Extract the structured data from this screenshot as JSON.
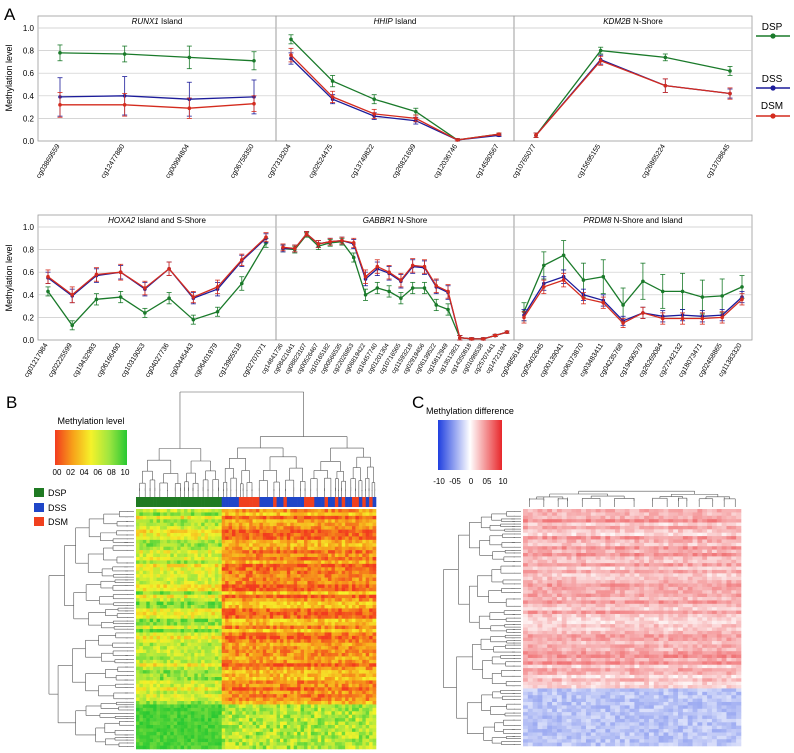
{
  "panel_letters": {
    "a": "A",
    "b": "B",
    "c": "C"
  },
  "shared": {
    "ylabel": "Methylation level",
    "yticks": [
      "0.0",
      "0.2",
      "0.4",
      "0.6",
      "0.8",
      "1.0"
    ]
  },
  "legend": {
    "items": [
      {
        "label": "DSP",
        "color": "#1a7a2a"
      },
      {
        "label": "DSS",
        "color": "#1c1c9a"
      },
      {
        "label": "DSM",
        "color": "#d42b1e"
      }
    ]
  },
  "colors": {
    "dsp": "#1a7a2a",
    "dss": "#1c1c9a",
    "dsm": "#d42b1e",
    "grid": "#c8c8c8",
    "frame": "#9a9a9a"
  },
  "chart_data": [
    {
      "type": "line",
      "gene": "RUNX1",
      "region": " Island",
      "ylim": [
        0,
        1
      ],
      "categories": [
        "cg03869559",
        "cg12477880",
        "cg00994804",
        "cg06758350"
      ],
      "series": [
        {
          "name": "DSP",
          "values": [
            0.78,
            0.77,
            0.74,
            0.71
          ],
          "errors": [
            0.07,
            0.07,
            0.1,
            0.08
          ]
        },
        {
          "name": "DSS",
          "values": [
            0.39,
            0.4,
            0.37,
            0.39
          ],
          "errors": [
            0.17,
            0.17,
            0.15,
            0.15
          ]
        },
        {
          "name": "DSM",
          "values": [
            0.32,
            0.32,
            0.29,
            0.33
          ],
          "errors": [
            0.11,
            0.1,
            0.09,
            0.07
          ]
        }
      ]
    },
    {
      "type": "line",
      "gene": "HHIP",
      "region": " Island",
      "ylim": [
        0,
        1
      ],
      "categories": [
        "cg07318204",
        "cg02524475",
        "cg13749822",
        "cg26821699",
        "cg12036746",
        "cg14580567"
      ],
      "series": [
        {
          "name": "DSP",
          "values": [
            0.9,
            0.53,
            0.37,
            0.26,
            0.01,
            0.06
          ],
          "errors": [
            0.04,
            0.05,
            0.04,
            0.03,
            0.01,
            0.01
          ]
        },
        {
          "name": "DSS",
          "values": [
            0.73,
            0.37,
            0.22,
            0.18,
            0.01,
            0.05
          ],
          "errors": [
            0.05,
            0.04,
            0.03,
            0.03,
            0.01,
            0.01
          ]
        },
        {
          "name": "DSM",
          "values": [
            0.76,
            0.39,
            0.24,
            0.2,
            0.01,
            0.06
          ],
          "errors": [
            0.06,
            0.05,
            0.04,
            0.03,
            0.01,
            0.01
          ]
        }
      ]
    },
    {
      "type": "line",
      "gene": "KDM2B",
      "region": " N-Shore",
      "ylim": [
        0,
        1
      ],
      "categories": [
        "cg10765077",
        "cg15695155",
        "cg26865224",
        "cg13708645"
      ],
      "series": [
        {
          "name": "DSP",
          "values": [
            0.05,
            0.8,
            0.74,
            0.62
          ],
          "errors": [
            0.02,
            0.03,
            0.03,
            0.04
          ]
        },
        {
          "name": "DSS",
          "values": [
            0.05,
            0.72,
            0.49,
            0.42
          ],
          "errors": [
            0.02,
            0.04,
            0.06,
            0.04
          ]
        },
        {
          "name": "DSM",
          "values": [
            0.05,
            0.71,
            0.49,
            0.42
          ],
          "errors": [
            0.02,
            0.04,
            0.06,
            0.05
          ]
        }
      ]
    },
    {
      "type": "line",
      "gene": "HOXA2",
      "region": " Island and S-Shore",
      "ylim": [
        0,
        1
      ],
      "categories": [
        "cg01217984",
        "cg02225599",
        "cg19432993",
        "cg06166490",
        "cg10319053",
        "cg04027736",
        "cg00445443",
        "cg06401979",
        "cg13965518",
        "cg02707071"
      ],
      "series": [
        {
          "name": "DSP",
          "values": [
            0.43,
            0.13,
            0.36,
            0.38,
            0.24,
            0.37,
            0.18,
            0.25,
            0.5,
            0.86
          ],
          "errors": [
            0.04,
            0.04,
            0.05,
            0.05,
            0.04,
            0.05,
            0.04,
            0.04,
            0.06,
            0.04
          ]
        },
        {
          "name": "DSS",
          "values": [
            0.55,
            0.39,
            0.57,
            0.6,
            0.45,
            0.63,
            0.37,
            0.45,
            0.7,
            0.9
          ],
          "errors": [
            0.05,
            0.06,
            0.06,
            0.06,
            0.06,
            0.06,
            0.05,
            0.06,
            0.05,
            0.04
          ]
        },
        {
          "name": "DSM",
          "values": [
            0.56,
            0.4,
            0.58,
            0.6,
            0.46,
            0.63,
            0.38,
            0.47,
            0.71,
            0.91
          ],
          "errors": [
            0.06,
            0.07,
            0.06,
            0.07,
            0.06,
            0.06,
            0.05,
            0.06,
            0.05,
            0.04
          ]
        }
      ]
    },
    {
      "type": "line",
      "gene": "GABBR1",
      "region": " N-Shore",
      "ylim": [
        0,
        1
      ],
      "categories": [
        "cg14841736",
        "cg08421641",
        "cg08823107",
        "cg00526467",
        "cg10165182",
        "cg00566535",
        "cg22026853",
        "cg06819422",
        "cg16457740",
        "cg01201304",
        "cg10716565",
        "cg11593218",
        "cg02919456",
        "cg06139522",
        "cg15812949",
        "cg13513921",
        "cg14350818",
        "cg01098538",
        "cg25707441",
        "cg14721194"
      ],
      "series": [
        {
          "name": "DSP",
          "values": [
            0.81,
            0.8,
            0.93,
            0.83,
            0.86,
            0.87,
            0.73,
            0.4,
            0.46,
            0.43,
            0.37,
            0.46,
            0.46,
            0.31,
            0.27,
            0.02,
            0.01,
            0.01,
            0.04,
            0.07
          ],
          "errors": [
            0.03,
            0.03,
            0.02,
            0.03,
            0.03,
            0.03,
            0.04,
            0.05,
            0.05,
            0.05,
            0.05,
            0.05,
            0.05,
            0.05,
            0.05,
            0.02,
            0.01,
            0.01,
            0.01,
            0.01
          ]
        },
        {
          "name": "DSS",
          "values": [
            0.81,
            0.81,
            0.94,
            0.85,
            0.87,
            0.88,
            0.85,
            0.54,
            0.63,
            0.59,
            0.52,
            0.65,
            0.64,
            0.47,
            0.42,
            0.02,
            0.01,
            0.01,
            0.04,
            0.07
          ],
          "errors": [
            0.03,
            0.03,
            0.02,
            0.03,
            0.03,
            0.03,
            0.04,
            0.06,
            0.06,
            0.06,
            0.06,
            0.06,
            0.06,
            0.06,
            0.06,
            0.02,
            0.01,
            0.01,
            0.01,
            0.01
          ]
        },
        {
          "name": "DSM",
          "values": [
            0.82,
            0.81,
            0.94,
            0.85,
            0.87,
            0.88,
            0.86,
            0.56,
            0.65,
            0.6,
            0.53,
            0.66,
            0.65,
            0.48,
            0.43,
            0.02,
            0.01,
            0.01,
            0.04,
            0.07
          ],
          "errors": [
            0.03,
            0.03,
            0.02,
            0.03,
            0.03,
            0.03,
            0.04,
            0.06,
            0.06,
            0.06,
            0.06,
            0.06,
            0.06,
            0.06,
            0.06,
            0.02,
            0.01,
            0.01,
            0.01,
            0.01
          ]
        }
      ]
    },
    {
      "type": "line",
      "gene": "PRDM8",
      "region": " N-Shore and Island",
      "ylim": [
        0,
        1
      ],
      "categories": [
        "cg04856148",
        "cg05402645",
        "cg00139041",
        "cg06373870",
        "cg03483411",
        "cg04235768",
        "cg19490579",
        "cg26269084",
        "cg27242132",
        "cg18073471",
        "cg02458865",
        "cg11383320"
      ],
      "series": [
        {
          "name": "DSP",
          "values": [
            0.25,
            0.66,
            0.75,
            0.53,
            0.56,
            0.31,
            0.52,
            0.43,
            0.43,
            0.38,
            0.39,
            0.47
          ],
          "errors": [
            0.08,
            0.12,
            0.13,
            0.15,
            0.15,
            0.15,
            0.16,
            0.15,
            0.16,
            0.15,
            0.15,
            0.1
          ]
        },
        {
          "name": "DSS",
          "values": [
            0.22,
            0.5,
            0.56,
            0.4,
            0.35,
            0.17,
            0.24,
            0.21,
            0.22,
            0.21,
            0.22,
            0.38
          ],
          "errors": [
            0.05,
            0.06,
            0.06,
            0.05,
            0.05,
            0.04,
            0.05,
            0.05,
            0.05,
            0.05,
            0.05,
            0.05
          ]
        },
        {
          "name": "DSM",
          "values": [
            0.2,
            0.47,
            0.53,
            0.37,
            0.33,
            0.15,
            0.24,
            0.19,
            0.19,
            0.19,
            0.2,
            0.36
          ],
          "errors": [
            0.05,
            0.06,
            0.06,
            0.05,
            0.05,
            0.04,
            0.05,
            0.05,
            0.05,
            0.05,
            0.05,
            0.05
          ]
        }
      ]
    },
    {
      "type": "heatmap",
      "title": "Methylation level",
      "scale_ticks": [
        "00",
        "02",
        "04",
        "06",
        "08",
        "10"
      ],
      "scale_colors": [
        "#f23b1e",
        "#f7a21a",
        "#f5f22a",
        "#9fe640",
        "#28c832"
      ],
      "groups": [
        {
          "label": "DSP",
          "color": "#1f7a22"
        },
        {
          "label": "DSS",
          "color": "#1f46c8"
        },
        {
          "label": "DSM",
          "color": "#f0401e"
        }
      ],
      "n_samples": 70,
      "n_probes": 70,
      "dsp_samples": 25
    },
    {
      "type": "heatmap",
      "title": "Methylation difference",
      "scale_ticks": [
        "-10",
        "-05",
        "0",
        "05",
        "10"
      ],
      "scale_colors": [
        "#1f3fe0",
        "#ffffff",
        "#e8262a"
      ],
      "n_samples": 45,
      "n_probes": 70,
      "hypo_probes": 17
    }
  ]
}
